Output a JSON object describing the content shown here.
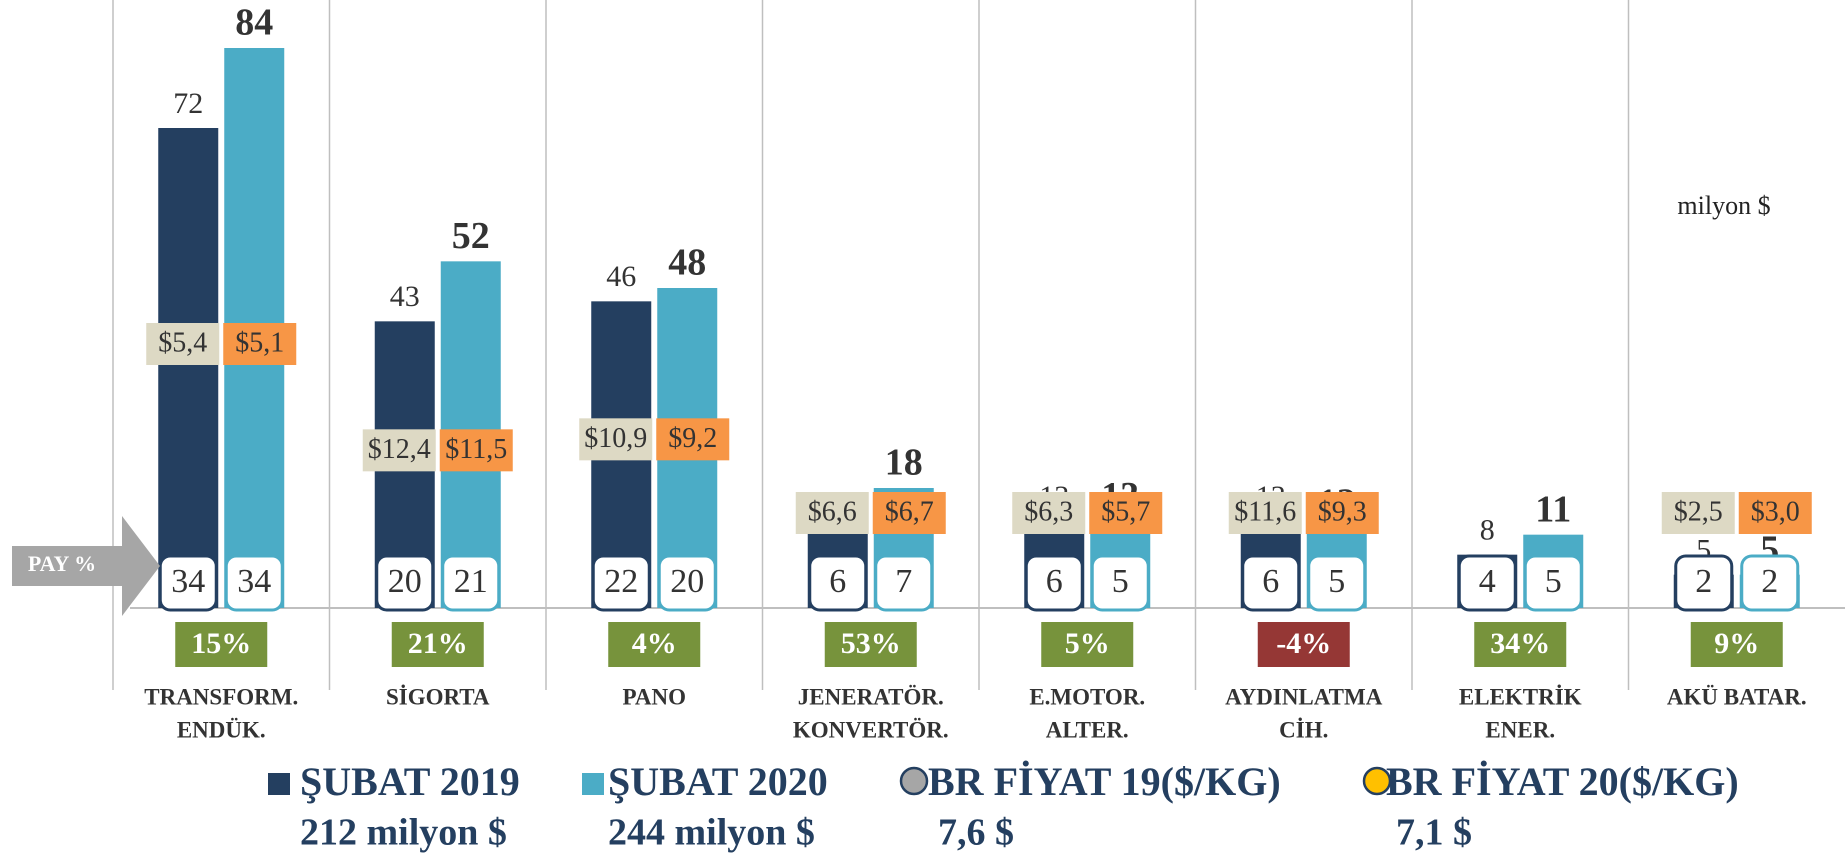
{
  "chart_data": {
    "type": "bar",
    "categories": [
      [
        "TRANSFORM.",
        "ENDÜK."
      ],
      [
        "SİGORTA"
      ],
      [
        "PANO"
      ],
      [
        "JENERATÖR.",
        "KONVERTÖR."
      ],
      [
        "E.MOTOR.",
        "ALTER."
      ],
      [
        "AYDINLATMA",
        "CİH."
      ],
      [
        "ELEKTRİK",
        "ENER."
      ],
      [
        "AKÜ BATAR."
      ]
    ],
    "ylim": [
      0,
      90
    ],
    "unit_label": "milyon $",
    "series": [
      {
        "name": "ŞUBAT 2019",
        "legend_subtitle": "212  milyon $",
        "color": "#243f60",
        "values": [
          72,
          43,
          46,
          12,
          13,
          13,
          8,
          5
        ]
      },
      {
        "name": "ŞUBAT  2020",
        "legend_subtitle": "244 milyon $",
        "color": "#4bacc6",
        "values": [
          84,
          52,
          48,
          18,
          13,
          12,
          11,
          5
        ]
      }
    ],
    "prices": [
      {
        "name": "BR FİYAT 19($/KG)",
        "legend_subtitle": "7,6 $",
        "color": "#ddd9c4",
        "marker_color": "#a6a6a6",
        "values": [
          5.4,
          12.4,
          10.9,
          6.6,
          6.3,
          11.6,
          null,
          2.5
        ],
        "value_labels": [
          "$5,4",
          "$12,4",
          "$10,9",
          "$6,6",
          "$6,3",
          "$11,6",
          null,
          "$2,5"
        ]
      },
      {
        "name": "BR FİYAT 20($/KG)",
        "legend_subtitle": "7,1 $",
        "color": "#f79646",
        "marker_color": "#ffc000",
        "values": [
          5.1,
          11.5,
          9.2,
          6.7,
          5.7,
          9.3,
          null,
          3.0
        ],
        "value_labels": [
          "$5,1",
          "$11,5",
          "$9,2",
          "$6,7",
          "$5,7",
          "$9,3",
          null,
          "$3,0"
        ]
      }
    ],
    "share_label": "PAY %",
    "shares": [
      [
        34,
        20,
        22,
        6,
        6,
        6,
        4,
        2
      ],
      [
        34,
        21,
        20,
        7,
        5,
        5,
        5,
        2
      ]
    ],
    "growth": {
      "values": [
        15,
        21,
        4,
        53,
        5,
        -4,
        34,
        9
      ],
      "value_labels": [
        "15%",
        "21%",
        "4%",
        "53%",
        "5%",
        "-4%",
        "34%",
        "9%"
      ],
      "positive_color": "#77933c",
      "negative_color": "#953735"
    }
  }
}
